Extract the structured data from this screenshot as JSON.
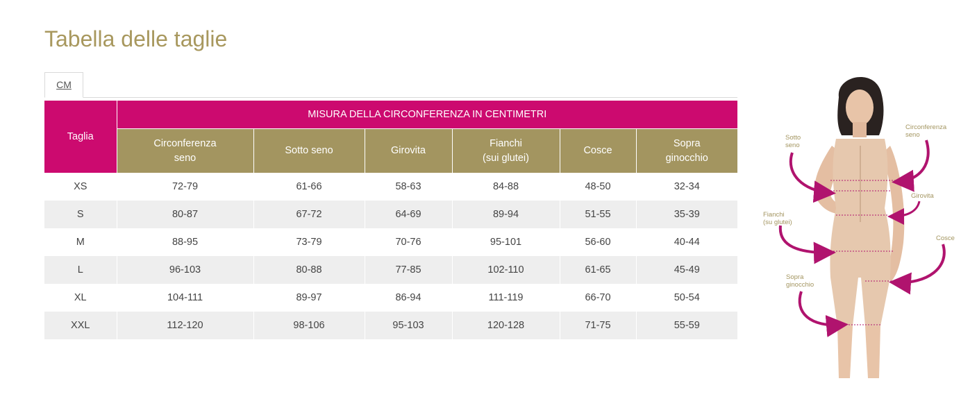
{
  "page": {
    "title": "Tabella delle taglie"
  },
  "tabs": [
    {
      "label": "CM"
    }
  ],
  "table": {
    "size_header": "Taglia",
    "super_header": "MISURA DELLA CIRCONFERENZA IN CENTIMETRI",
    "columns": [
      {
        "line1": "Circonferenza",
        "line2": "seno"
      },
      {
        "line1": "Sotto seno",
        "line2": ""
      },
      {
        "line1": "Girovita",
        "line2": ""
      },
      {
        "line1": "Fianchi",
        "line2": "(sui glutei)"
      },
      {
        "line1": "Cosce",
        "line2": ""
      },
      {
        "line1": "Sopra",
        "line2": "ginocchio"
      }
    ],
    "rows": [
      {
        "size": "XS",
        "cells": [
          "72-79",
          "61-66",
          "58-63",
          "84-88",
          "48-50",
          "32-34"
        ]
      },
      {
        "size": "S",
        "cells": [
          "80-87",
          "67-72",
          "64-69",
          "89-94",
          "51-55",
          "35-39"
        ]
      },
      {
        "size": "M",
        "cells": [
          "88-95",
          "73-79",
          "70-76",
          "95-101",
          "56-60",
          "40-44"
        ]
      },
      {
        "size": "L",
        "cells": [
          "96-103",
          "80-88",
          "77-85",
          "102-110",
          "61-65",
          "45-49"
        ]
      },
      {
        "size": "XL",
        "cells": [
          "104-111",
          "89-97",
          "86-94",
          "111-119",
          "66-70",
          "50-54"
        ]
      },
      {
        "size": "XXL",
        "cells": [
          "112-120",
          "98-106",
          "95-103",
          "120-128",
          "71-75",
          "55-59"
        ]
      }
    ]
  },
  "illustration": {
    "labels": {
      "sotto_seno_1": "Sotto",
      "sotto_seno_2": "seno",
      "circ_seno_1": "Circonferenza",
      "circ_seno_2": "seno",
      "girovita": "Girovita",
      "fianchi_1": "Fianchi",
      "fianchi_2": "(su glutei)",
      "cosce": "Cosce",
      "sopra_gin_1": "Sopra",
      "sopra_gin_2": "ginocchio"
    }
  },
  "colors": {
    "title": "#a8985e",
    "header_magenta": "#cc0a6f",
    "header_gold": "#a39560",
    "row_stripe": "#eeeeee"
  }
}
